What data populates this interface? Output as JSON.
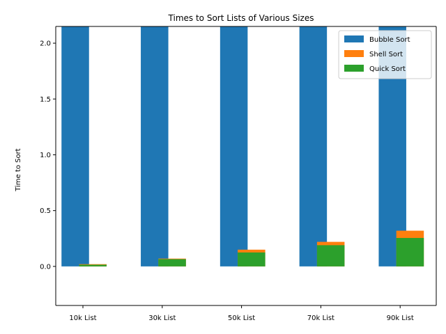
{
  "chart_data": {
    "type": "bar",
    "title": "Times to Sort Lists of Various Sizes",
    "xlabel": "",
    "ylabel": "Time to Sort",
    "categories": [
      "10k List",
      "30k List",
      "50k List",
      "70k List",
      "90k List"
    ],
    "ylim": [
      -0.35,
      2.15
    ],
    "yticks": [
      0.0,
      0.5,
      1.0,
      1.5,
      2.0
    ],
    "ytick_labels": [
      "0.0",
      "0.5",
      "1.0",
      "1.5",
      "2.0"
    ],
    "legend_position": "top-right",
    "series": [
      {
        "name": "Bubble Sort",
        "color": "#1f77b4",
        "values": [
          2.15,
          2.15,
          2.15,
          2.15,
          2.15
        ],
        "offset": "left"
      },
      {
        "name": "Shell Sort",
        "color": "#ff7f0e",
        "values": [
          0.02,
          0.07,
          0.15,
          0.22,
          0.32
        ],
        "offset": "right"
      },
      {
        "name": "Quick Sort",
        "color": "#2ca02c",
        "values": [
          0.015,
          0.065,
          0.125,
          0.19,
          0.255
        ],
        "offset": "right"
      }
    ]
  }
}
